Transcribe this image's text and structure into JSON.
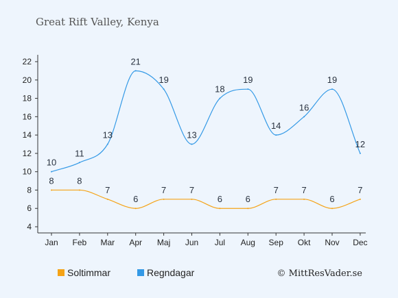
{
  "title": "Great Rift Valley, Kenya",
  "credit": "© MittResVader.se",
  "chart_data": {
    "type": "line",
    "categories": [
      "Jan",
      "Feb",
      "Mar",
      "Apr",
      "Maj",
      "Jun",
      "Jul",
      "Aug",
      "Sep",
      "Okt",
      "Nov",
      "Dec"
    ],
    "yticks": [
      4,
      6,
      8,
      10,
      12,
      14,
      16,
      18,
      20,
      22
    ],
    "ylim": [
      4,
      22
    ],
    "grid": false,
    "legend_position": "bottom-left",
    "series": [
      {
        "name": "Soltimmar",
        "color": "#f5a316",
        "values": [
          8,
          8,
          7,
          6,
          7,
          7,
          6,
          6,
          7,
          7,
          6,
          7
        ]
      },
      {
        "name": "Regndagar",
        "color": "#3399e6",
        "values": [
          10,
          11,
          13,
          21,
          19,
          13,
          18,
          19,
          14,
          16,
          19,
          12
        ]
      }
    ]
  }
}
